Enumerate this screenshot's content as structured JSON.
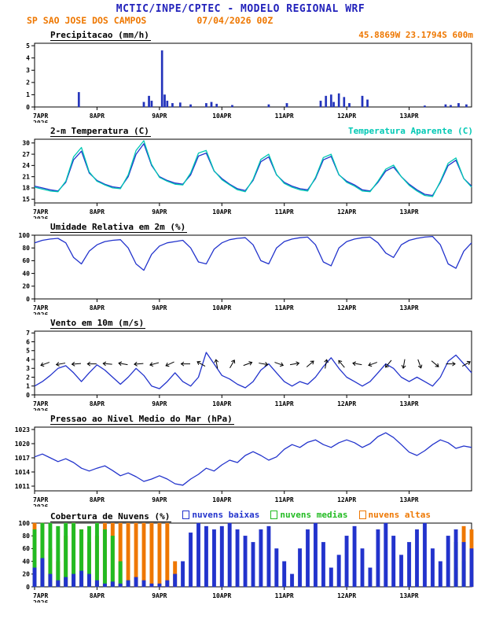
{
  "header": {
    "title": "MCTIC/INPE/CPTEC - MODELO REGIONAL WRF",
    "station": "SP SAO JOSE DOS CAMPOS",
    "run_date": "07/04/2026 00Z",
    "location": "45.8869W 23.1794S 600m"
  },
  "colors": {
    "header_blue": "#2222bb",
    "orange": "#ee7700",
    "apparent_cyan": "#00c8b4",
    "line_blue": "#2233cc",
    "green": "#22bb22"
  },
  "x_axis": {
    "labels": [
      "7APR",
      "8APR",
      "9APR",
      "10APR",
      "11APR",
      "12APR",
      "13APR"
    ],
    "year": "2026",
    "total_hours": 168
  },
  "chart_data": [
    {
      "id": "precipitation",
      "type": "bar",
      "title": "Precipitacao (mm/h)",
      "right_label": {
        "text": "45.8869W 23.1794S 600m",
        "color": "#ee7700"
      },
      "ylim": [
        0,
        5.2
      ],
      "yticks": [
        0,
        1,
        2,
        3,
        4,
        5
      ],
      "series": [
        {
          "name": "precipitacao",
          "type": "bar",
          "color": "#2233bb",
          "x_hours": [
            17,
            42,
            44,
            45,
            49,
            50,
            51,
            53,
            56,
            60,
            66,
            68,
            70,
            76,
            90,
            97,
            110,
            112,
            114,
            115,
            117,
            119,
            121,
            126,
            128,
            150,
            158,
            160,
            163,
            166
          ],
          "values": [
            1.2,
            0.4,
            0.9,
            0.5,
            4.6,
            1.0,
            0.5,
            0.3,
            0.35,
            0.2,
            0.3,
            0.4,
            0.25,
            0.15,
            0.2,
            0.3,
            0.5,
            0.9,
            1.0,
            0.4,
            1.1,
            0.8,
            0.3,
            0.9,
            0.6,
            0.1,
            0.2,
            0.15,
            0.3,
            0.2
          ]
        }
      ]
    },
    {
      "id": "temperature",
      "type": "line",
      "title": "2-m Temperatura (C)",
      "right_label": {
        "text": "Temperatura Aparente (C)",
        "color": "#00c8b4"
      },
      "ylim": [
        14,
        31
      ],
      "yticks": [
        15,
        18,
        21,
        24,
        27,
        30
      ],
      "series": [
        {
          "name": "2-m temperatura",
          "type": "line",
          "color": "#2233cc",
          "x_step": 3,
          "values": [
            18.5,
            18.0,
            17.5,
            17.2,
            19.5,
            25.5,
            27.8,
            22.0,
            20.0,
            19.0,
            18.3,
            18.0,
            21.0,
            27.0,
            29.8,
            24.0,
            21.0,
            20.0,
            19.3,
            19.0,
            21.5,
            26.5,
            27.3,
            22.5,
            20.5,
            19.0,
            17.8,
            17.3,
            20.0,
            25.0,
            26.3,
            21.5,
            19.5,
            18.5,
            17.8,
            17.5,
            20.5,
            25.5,
            26.4,
            21.5,
            19.8,
            18.8,
            17.5,
            17.2,
            19.5,
            22.5,
            23.6,
            21.0,
            19.0,
            17.5,
            16.3,
            16.0,
            19.5,
            24.0,
            25.4,
            20.5,
            18.5
          ]
        },
        {
          "name": "temperatura aparente",
          "type": "line",
          "color": "#00c8b4",
          "x_step": 3,
          "values": [
            18.2,
            17.7,
            17.2,
            17.0,
            19.8,
            26.3,
            28.8,
            22.3,
            19.8,
            18.8,
            18.0,
            17.8,
            21.5,
            28.0,
            30.6,
            24.3,
            20.8,
            19.8,
            19.0,
            18.8,
            22.0,
            27.3,
            28.0,
            22.6,
            20.2,
            18.8,
            17.5,
            17.0,
            20.3,
            25.6,
            27.0,
            21.6,
            19.2,
            18.2,
            17.5,
            17.2,
            20.8,
            26.1,
            27.0,
            21.6,
            19.5,
            18.5,
            17.2,
            17.0,
            19.8,
            23.0,
            24.1,
            21.0,
            18.7,
            17.2,
            16.0,
            15.7,
            19.8,
            24.6,
            26.0,
            20.5,
            18.2
          ]
        }
      ]
    },
    {
      "id": "humidity",
      "type": "line",
      "title": "Umidade Relativa em 2m (%)",
      "ylim": [
        0,
        100
      ],
      "yticks": [
        0,
        20,
        40,
        60,
        80,
        100
      ],
      "series": [
        {
          "name": "umidade relativa",
          "type": "line",
          "color": "#2233cc",
          "x_step": 3,
          "values": [
            88,
            92,
            94,
            95,
            88,
            65,
            55,
            75,
            85,
            90,
            92,
            93,
            80,
            55,
            45,
            70,
            83,
            88,
            90,
            92,
            80,
            58,
            55,
            78,
            88,
            93,
            95,
            96,
            85,
            60,
            55,
            80,
            90,
            94,
            96,
            97,
            85,
            58,
            52,
            80,
            90,
            94,
            96,
            97,
            88,
            72,
            65,
            85,
            92,
            95,
            97,
            98,
            85,
            55,
            48,
            75,
            88
          ]
        }
      ]
    },
    {
      "id": "wind",
      "type": "line",
      "title": "Vento em 10m (m/s)",
      "ylim": [
        0,
        7.2
      ],
      "yticks": [
        0,
        1,
        2,
        3,
        4,
        5,
        6,
        7
      ],
      "series": [
        {
          "name": "velocidade do vento",
          "type": "line",
          "color": "#2233cc",
          "x_step": 3,
          "values": [
            1.0,
            1.5,
            2.2,
            3.0,
            3.3,
            2.5,
            1.5,
            2.5,
            3.4,
            2.8,
            2.0,
            1.2,
            2.0,
            3.0,
            2.2,
            1.0,
            0.7,
            1.5,
            2.5,
            1.5,
            1.0,
            2.0,
            4.8,
            3.5,
            2.2,
            1.8,
            1.2,
            0.8,
            1.5,
            2.8,
            3.5,
            2.5,
            1.5,
            1.0,
            1.5,
            1.2,
            2.0,
            3.2,
            4.2,
            3.0,
            2.0,
            1.5,
            1.0,
            1.5,
            2.5,
            3.5,
            3.0,
            2.0,
            1.5,
            2.0,
            1.5,
            1.0,
            2.0,
            3.8,
            4.5,
            3.5,
            2.5
          ]
        }
      ],
      "barbs": {
        "value": 3.5,
        "x_start": 4,
        "x_step": 6,
        "color": "#000000",
        "dirs": [
          200,
          190,
          185,
          180,
          175,
          170,
          185,
          195,
          205,
          180,
          150,
          100,
          60,
          20,
          350,
          340,
          10,
          40,
          80,
          130,
          170,
          200,
          230,
          260,
          290,
          320,
          0,
          30
        ]
      }
    },
    {
      "id": "pressure",
      "type": "line",
      "title": "Pressao ao Nivel Medio do Mar (hPa)",
      "ylim": [
        1010,
        1023.5
      ],
      "yticks": [
        1011,
        1014,
        1017,
        1020,
        1023
      ],
      "series": [
        {
          "name": "pressao",
          "type": "line",
          "color": "#2233cc",
          "x_step": 3,
          "values": [
            1017.2,
            1017.8,
            1017.0,
            1016.2,
            1016.8,
            1016.0,
            1014.8,
            1014.2,
            1014.8,
            1015.3,
            1014.3,
            1013.2,
            1013.8,
            1013.0,
            1012.0,
            1012.5,
            1013.2,
            1012.5,
            1011.5,
            1011.2,
            1012.5,
            1013.5,
            1014.8,
            1014.2,
            1015.5,
            1016.5,
            1016.0,
            1017.5,
            1018.3,
            1017.5,
            1016.5,
            1017.2,
            1018.8,
            1019.8,
            1019.2,
            1020.3,
            1020.8,
            1019.8,
            1019.2,
            1020.2,
            1020.8,
            1020.2,
            1019.2,
            1020.0,
            1021.5,
            1022.3,
            1021.3,
            1019.8,
            1018.2,
            1017.5,
            1018.5,
            1019.8,
            1020.8,
            1020.2,
            1019.0,
            1019.5,
            1019.2
          ]
        }
      ]
    },
    {
      "id": "clouds",
      "type": "bar",
      "title": "Cobertura de Nuvens (%)",
      "ylim": [
        0,
        100
      ],
      "yticks": [
        0,
        20,
        40,
        60,
        80,
        100
      ],
      "legend": [
        {
          "label": "nuvens baixas",
          "color": "#2233cc"
        },
        {
          "label": "nuvens medias",
          "color": "#22bb22"
        },
        {
          "label": "nuvens altas",
          "color": "#ee7700"
        }
      ],
      "series": [
        {
          "name": "nuvens altas",
          "type": "bar",
          "color": "#ee7700",
          "x_step": 3,
          "values": [
            100,
            100,
            60,
            40,
            80,
            100,
            90,
            70,
            80,
            100,
            100,
            100,
            100,
            100,
            100,
            100,
            100,
            100,
            40,
            0,
            0,
            0,
            0,
            0,
            0,
            0,
            0,
            0,
            0,
            0,
            0,
            0,
            0,
            0,
            0,
            0,
            0,
            0,
            0,
            0,
            0,
            0,
            0,
            0,
            0,
            0,
            0,
            0,
            0,
            0,
            0,
            0,
            0,
            0,
            30,
            95,
            90
          ]
        },
        {
          "name": "nuvens medias",
          "type": "bar",
          "color": "#22bb22",
          "x_step": 3,
          "values": [
            90,
            100,
            100,
            95,
            100,
            100,
            90,
            95,
            100,
            90,
            80,
            40,
            10,
            0,
            0,
            0,
            0,
            0,
            0,
            0,
            0,
            0,
            0,
            0,
            0,
            0,
            0,
            0,
            0,
            0,
            0,
            0,
            0,
            0,
            0,
            0,
            0,
            0,
            0,
            0,
            0,
            0,
            0,
            0,
            0,
            0,
            0,
            0,
            0,
            0,
            0,
            0,
            0,
            0,
            70,
            40,
            0
          ]
        },
        {
          "name": "nuvens baixas",
          "type": "bar",
          "color": "#2233cc",
          "x_step": 3,
          "values": [
            30,
            45,
            20,
            10,
            15,
            20,
            25,
            20,
            10,
            5,
            8,
            5,
            10,
            15,
            10,
            5,
            5,
            10,
            20,
            40,
            85,
            100,
            95,
            90,
            95,
            100,
            90,
            80,
            70,
            90,
            95,
            60,
            40,
            20,
            60,
            90,
            100,
            70,
            30,
            50,
            80,
            95,
            60,
            30,
            90,
            100,
            80,
            50,
            70,
            90,
            100,
            60,
            40,
            80,
            90,
            70,
            60
          ]
        }
      ]
    }
  ]
}
